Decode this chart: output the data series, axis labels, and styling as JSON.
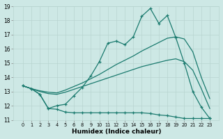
{
  "xlabel": "Humidex (Indice chaleur)",
  "x_positions": [
    0,
    1,
    2,
    3,
    4,
    5,
    6,
    7,
    8,
    9,
    10,
    11,
    12,
    13,
    14,
    15,
    16,
    17,
    18,
    19,
    20,
    21,
    22
  ],
  "xtick_labels": [
    "0",
    "1",
    "2",
    "3",
    "4",
    "5",
    "6",
    "8",
    "9",
    "10",
    "11",
    "12",
    "13",
    "14",
    "15",
    "16",
    "17",
    "18",
    "19",
    "20",
    "21",
    "22",
    "23"
  ],
  "line_max": [
    13.4,
    13.2,
    12.8,
    11.8,
    12.0,
    12.1,
    12.7,
    13.3,
    14.1,
    15.1,
    16.4,
    16.55,
    16.3,
    16.85,
    18.3,
    18.85,
    17.8,
    18.35,
    16.8,
    15.0,
    13.0,
    11.9,
    11.1
  ],
  "line_mid_top": [
    13.4,
    13.2,
    13.05,
    12.95,
    12.9,
    13.1,
    13.35,
    13.6,
    13.9,
    14.2,
    14.55,
    14.9,
    15.2,
    15.5,
    15.85,
    16.15,
    16.45,
    16.75,
    16.85,
    16.7,
    15.8,
    14.0,
    12.5
  ],
  "line_mid_bot": [
    13.4,
    13.2,
    13.0,
    12.85,
    12.8,
    12.95,
    13.15,
    13.35,
    13.55,
    13.75,
    13.95,
    14.15,
    14.35,
    14.55,
    14.75,
    14.9,
    15.05,
    15.2,
    15.3,
    15.1,
    14.5,
    13.2,
    11.8
  ],
  "line_min": [
    13.4,
    13.2,
    12.8,
    11.8,
    11.75,
    11.55,
    11.5,
    11.5,
    11.5,
    11.5,
    11.5,
    11.5,
    11.5,
    11.5,
    11.5,
    11.45,
    11.35,
    11.3,
    11.2,
    11.1,
    11.1,
    11.1,
    11.1
  ],
  "ylim": [
    11,
    19
  ],
  "yticks": [
    11,
    12,
    13,
    14,
    15,
    16,
    17,
    18,
    19
  ],
  "bg_color": "#cde8e5",
  "grid_color": "#b8d4d0",
  "line_color": "#1a7a6e",
  "marker": "+"
}
